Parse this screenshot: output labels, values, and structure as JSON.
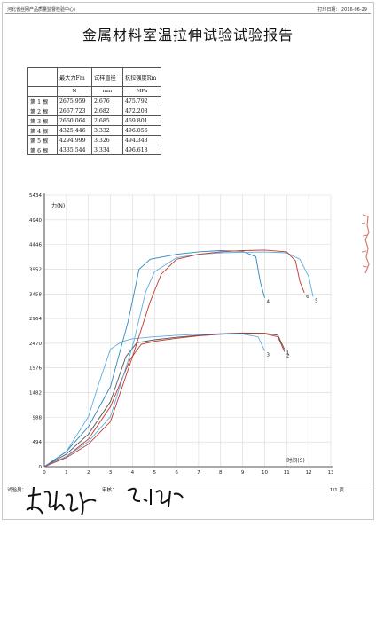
{
  "header": {
    "institution": "河北省丝网产品质量监督检验中心)",
    "print_date": "打印日期： 2016-06-29"
  },
  "title": "金属材料室温拉伸试验试验报告",
  "table": {
    "columns": [
      "",
      "最大力Fm",
      "试样直径",
      "抗拉强度Rm"
    ],
    "units": [
      "",
      "N",
      "mm",
      "MPa"
    ],
    "rows": [
      [
        "第 1 根",
        "2675.959",
        "2.676",
        "475.792"
      ],
      [
        "第 2 根",
        "2667.723",
        "2.682",
        "472.208"
      ],
      [
        "第 3 根",
        "2660.064",
        "2.685",
        "469.801"
      ],
      [
        "第 4 根",
        "4325.446",
        "3.332",
        "496.056"
      ],
      [
        "第 5 根",
        "4294.999",
        "3.326",
        "494.343"
      ],
      [
        "第 6 根",
        "4335.544",
        "3.334",
        "496.618"
      ]
    ]
  },
  "chart_data": {
    "type": "line",
    "ylabel": "力(N)",
    "xlabel": "时间(S)",
    "xlim": [
      0,
      13
    ],
    "ylim": [
      0,
      5434
    ],
    "xticks": [
      0,
      1,
      2,
      3,
      4,
      5,
      6,
      7,
      8,
      9,
      10,
      11,
      12,
      13
    ],
    "yticks": [
      0,
      494,
      988,
      1482,
      1976,
      2470,
      2964,
      3458,
      3952,
      4446,
      4940,
      5434
    ],
    "grid": true,
    "series": [
      {
        "name": "1",
        "color": "#555555",
        "points": [
          [
            0,
            0
          ],
          [
            1,
            250
          ],
          [
            2,
            650
          ],
          [
            3,
            1300
          ],
          [
            3.7,
            2200
          ],
          [
            4.2,
            2480
          ],
          [
            5,
            2540
          ],
          [
            6,
            2590
          ],
          [
            7,
            2630
          ],
          [
            8,
            2660
          ],
          [
            9,
            2676
          ],
          [
            10,
            2670
          ],
          [
            10.6,
            2630
          ],
          [
            10.9,
            2350
          ]
        ]
      },
      {
        "name": "2",
        "color": "#c0392b",
        "points": [
          [
            0,
            0
          ],
          [
            1,
            200
          ],
          [
            2,
            550
          ],
          [
            3,
            1200
          ],
          [
            3.9,
            2150
          ],
          [
            4.4,
            2450
          ],
          [
            5,
            2510
          ],
          [
            6,
            2570
          ],
          [
            7,
            2620
          ],
          [
            8,
            2650
          ],
          [
            9,
            2668
          ],
          [
            10,
            2660
          ],
          [
            10.6,
            2600
          ],
          [
            10.9,
            2300
          ]
        ]
      },
      {
        "name": "3",
        "color": "#5dade2",
        "points": [
          [
            0,
            0
          ],
          [
            1,
            300
          ],
          [
            2,
            1000
          ],
          [
            2.5,
            1700
          ],
          [
            3,
            2350
          ],
          [
            3.5,
            2500
          ],
          [
            4,
            2560
          ],
          [
            5,
            2600
          ],
          [
            6,
            2630
          ],
          [
            7,
            2650
          ],
          [
            8,
            2660
          ],
          [
            9,
            2655
          ],
          [
            9.7,
            2600
          ],
          [
            10,
            2320
          ]
        ]
      },
      {
        "name": "4",
        "color": "#2e86c1",
        "points": [
          [
            0,
            0
          ],
          [
            1,
            300
          ],
          [
            2,
            800
          ],
          [
            3,
            1600
          ],
          [
            3.8,
            2900
          ],
          [
            4.3,
            3950
          ],
          [
            4.8,
            4150
          ],
          [
            6,
            4250
          ],
          [
            7,
            4300
          ],
          [
            8,
            4325
          ],
          [
            9,
            4310
          ],
          [
            9.6,
            4200
          ],
          [
            9.8,
            3700
          ],
          [
            10,
            3380
          ]
        ]
      },
      {
        "name": "5",
        "color": "#5dade2",
        "points": [
          [
            0,
            0
          ],
          [
            1,
            200
          ],
          [
            2,
            500
          ],
          [
            3,
            1000
          ],
          [
            4,
            2400
          ],
          [
            4.6,
            3500
          ],
          [
            5,
            3900
          ],
          [
            6,
            4180
          ],
          [
            7,
            4250
          ],
          [
            8,
            4280
          ],
          [
            9,
            4290
          ],
          [
            10,
            4295
          ],
          [
            11,
            4280
          ],
          [
            11.6,
            4150
          ],
          [
            12,
            3800
          ],
          [
            12.2,
            3400
          ]
        ]
      },
      {
        "name": "6",
        "color": "#c0392b",
        "points": [
          [
            0,
            0
          ],
          [
            1,
            180
          ],
          [
            2,
            450
          ],
          [
            3,
            900
          ],
          [
            4,
            2200
          ],
          [
            4.8,
            3300
          ],
          [
            5.3,
            3850
          ],
          [
            6,
            4150
          ],
          [
            7,
            4250
          ],
          [
            8,
            4300
          ],
          [
            9,
            4325
          ],
          [
            10,
            4335
          ],
          [
            11,
            4300
          ],
          [
            11.4,
            4120
          ],
          [
            11.6,
            3700
          ],
          [
            11.8,
            3480
          ]
        ]
      }
    ]
  },
  "footer": {
    "tester_label": "试验员：",
    "reviewer_label": "审核：",
    "page": "1/1 页"
  },
  "stamp_text": "河北省丝网产品质量监督检验中心"
}
